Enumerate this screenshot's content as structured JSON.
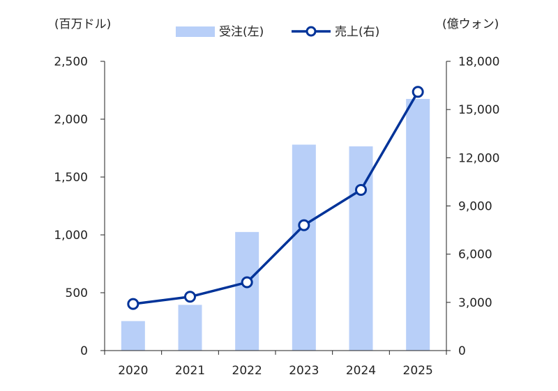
{
  "chart_data": {
    "type": "bar+line",
    "categories": [
      "2020",
      "2021",
      "2022",
      "2023",
      "2024",
      "2025"
    ],
    "series": [
      {
        "name": "受注(左)",
        "type": "bar",
        "axis": "left",
        "color": "#b8cff8",
        "values": [
          255,
          395,
          1025,
          1780,
          1765,
          2175
        ]
      },
      {
        "name": "売上(右)",
        "type": "line",
        "axis": "right",
        "color": "#003399",
        "values": [
          2900,
          3350,
          4250,
          7800,
          10000,
          16100
        ]
      }
    ],
    "left_axis": {
      "unit": "(百万ドル)",
      "ylim": [
        0,
        2500
      ],
      "ticks": [
        {
          "value": 0,
          "label": "0"
        },
        {
          "value": 500,
          "label": "500"
        },
        {
          "value": 1000,
          "label": "1,000"
        },
        {
          "value": 1500,
          "label": "1,500"
        },
        {
          "value": 2000,
          "label": "2,000"
        },
        {
          "value": 2500,
          "label": "2,500"
        }
      ]
    },
    "right_axis": {
      "unit": "(億ウォン)",
      "ylim": [
        0,
        18000
      ],
      "ticks": [
        {
          "value": 0,
          "label": "0"
        },
        {
          "value": 3000,
          "label": "3,000"
        },
        {
          "value": 6000,
          "label": "6,000"
        },
        {
          "value": 9000,
          "label": "9,000"
        },
        {
          "value": 12000,
          "label": "12,000"
        },
        {
          "value": 15000,
          "label": "15,000"
        },
        {
          "value": 18000,
          "label": "18,000"
        }
      ]
    },
    "legend": {
      "position": "top-center"
    },
    "grid": false
  }
}
